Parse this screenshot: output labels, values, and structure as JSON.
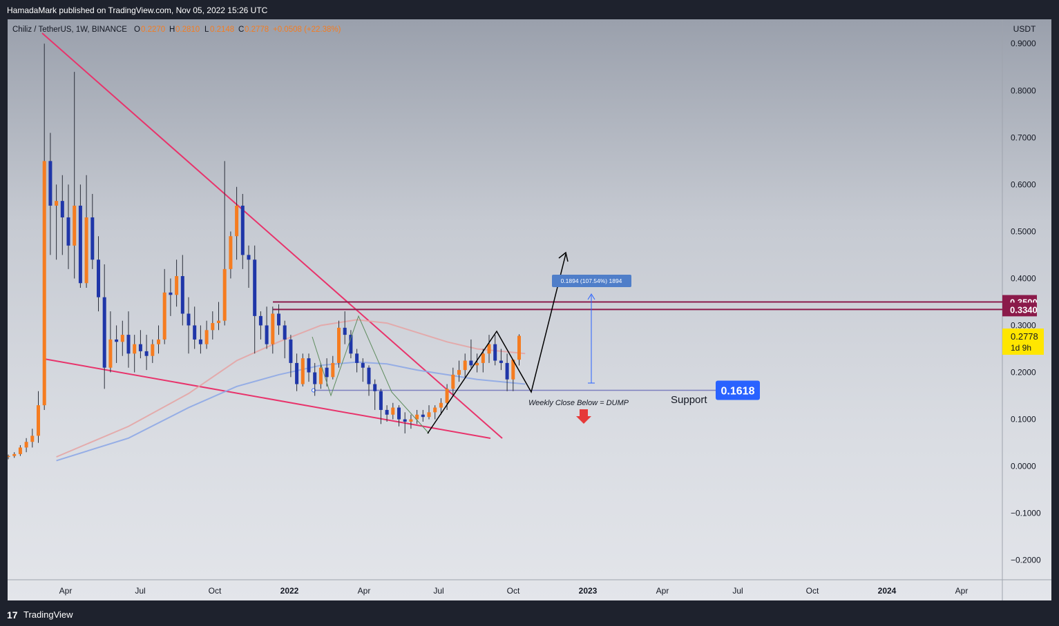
{
  "header": {
    "published": "HamadaMark published on TradingView.com, Nov 05, 2022 15:26 UTC"
  },
  "footer": {
    "logo": "17",
    "brand": "TradingView"
  },
  "legend": {
    "symbol": "Chiliz / TetherUS, 1W, BINANCE",
    "o_label": "O",
    "o_value": "0.2270",
    "h_label": "H",
    "h_value": "0.2810",
    "l_label": "L",
    "l_value": "0.2148",
    "c_label": "C",
    "c_value": "0.2778",
    "change": "+0.0508 (+22.38%)"
  },
  "colors": {
    "up": "#f57c20",
    "down": "#1f36a8",
    "trendline": "#e8336b",
    "resistance": "#8b1a4a",
    "support": "#2962ff",
    "price": "#ffe600"
  },
  "chart_data": {
    "type": "candlestick",
    "currency": "USDT",
    "ylim": [
      -0.25,
      0.92
    ],
    "y_ticks": [
      "0.9000",
      "0.8000",
      "0.7000",
      "0.6000",
      "0.5000",
      "0.4000",
      "0.3000",
      "0.2000",
      "0.1000",
      "0.0000",
      "−0.1000",
      "−0.2000"
    ],
    "x_ticks": [
      "Apr",
      "Jul",
      "Oct",
      "2022",
      "Apr",
      "Jul",
      "Oct",
      "2023",
      "Apr",
      "Jul",
      "Oct",
      "2024",
      "Apr"
    ],
    "candles": [
      {
        "o": 0.02,
        "h": 0.025,
        "l": 0.015,
        "c": 0.022
      },
      {
        "o": 0.022,
        "h": 0.03,
        "l": 0.018,
        "c": 0.026
      },
      {
        "o": 0.026,
        "h": 0.045,
        "l": 0.022,
        "c": 0.04
      },
      {
        "o": 0.04,
        "h": 0.06,
        "l": 0.03,
        "c": 0.052
      },
      {
        "o": 0.052,
        "h": 0.08,
        "l": 0.04,
        "c": 0.065
      },
      {
        "o": 0.065,
        "h": 0.16,
        "l": 0.05,
        "c": 0.13
      },
      {
        "o": 0.13,
        "h": 0.9,
        "l": 0.12,
        "c": 0.65
      },
      {
        "o": 0.65,
        "h": 0.71,
        "l": 0.45,
        "c": 0.555
      },
      {
        "o": 0.555,
        "h": 0.6,
        "l": 0.44,
        "c": 0.565
      },
      {
        "o": 0.565,
        "h": 0.62,
        "l": 0.45,
        "c": 0.53
      },
      {
        "o": 0.53,
        "h": 0.6,
        "l": 0.42,
        "c": 0.47
      },
      {
        "o": 0.47,
        "h": 0.84,
        "l": 0.4,
        "c": 0.555
      },
      {
        "o": 0.555,
        "h": 0.6,
        "l": 0.38,
        "c": 0.39
      },
      {
        "o": 0.39,
        "h": 0.62,
        "l": 0.38,
        "c": 0.53
      },
      {
        "o": 0.53,
        "h": 0.58,
        "l": 0.42,
        "c": 0.44
      },
      {
        "o": 0.44,
        "h": 0.49,
        "l": 0.33,
        "c": 0.36
      },
      {
        "o": 0.36,
        "h": 0.43,
        "l": 0.165,
        "c": 0.21
      },
      {
        "o": 0.21,
        "h": 0.33,
        "l": 0.2,
        "c": 0.27
      },
      {
        "o": 0.27,
        "h": 0.3,
        "l": 0.22,
        "c": 0.265
      },
      {
        "o": 0.265,
        "h": 0.31,
        "l": 0.235,
        "c": 0.28
      },
      {
        "o": 0.28,
        "h": 0.33,
        "l": 0.21,
        "c": 0.24
      },
      {
        "o": 0.24,
        "h": 0.28,
        "l": 0.2,
        "c": 0.26
      },
      {
        "o": 0.26,
        "h": 0.29,
        "l": 0.23,
        "c": 0.245
      },
      {
        "o": 0.245,
        "h": 0.28,
        "l": 0.205,
        "c": 0.235
      },
      {
        "o": 0.235,
        "h": 0.27,
        "l": 0.22,
        "c": 0.26
      },
      {
        "o": 0.26,
        "h": 0.3,
        "l": 0.24,
        "c": 0.27
      },
      {
        "o": 0.27,
        "h": 0.42,
        "l": 0.26,
        "c": 0.37
      },
      {
        "o": 0.37,
        "h": 0.4,
        "l": 0.32,
        "c": 0.365
      },
      {
        "o": 0.365,
        "h": 0.44,
        "l": 0.34,
        "c": 0.405
      },
      {
        "o": 0.405,
        "h": 0.45,
        "l": 0.3,
        "c": 0.325
      },
      {
        "o": 0.325,
        "h": 0.36,
        "l": 0.24,
        "c": 0.3
      },
      {
        "o": 0.3,
        "h": 0.34,
        "l": 0.25,
        "c": 0.27
      },
      {
        "o": 0.27,
        "h": 0.3,
        "l": 0.24,
        "c": 0.26
      },
      {
        "o": 0.26,
        "h": 0.31,
        "l": 0.25,
        "c": 0.29
      },
      {
        "o": 0.29,
        "h": 0.33,
        "l": 0.27,
        "c": 0.305
      },
      {
        "o": 0.305,
        "h": 0.35,
        "l": 0.29,
        "c": 0.31
      },
      {
        "o": 0.31,
        "h": 0.65,
        "l": 0.3,
        "c": 0.42
      },
      {
        "o": 0.42,
        "h": 0.5,
        "l": 0.4,
        "c": 0.49
      },
      {
        "o": 0.49,
        "h": 0.595,
        "l": 0.44,
        "c": 0.555
      },
      {
        "o": 0.555,
        "h": 0.58,
        "l": 0.42,
        "c": 0.45
      },
      {
        "o": 0.45,
        "h": 0.47,
        "l": 0.38,
        "c": 0.44
      },
      {
        "o": 0.44,
        "h": 0.47,
        "l": 0.24,
        "c": 0.32
      },
      {
        "o": 0.32,
        "h": 0.33,
        "l": 0.27,
        "c": 0.3
      },
      {
        "o": 0.3,
        "h": 0.34,
        "l": 0.25,
        "c": 0.26
      },
      {
        "o": 0.26,
        "h": 0.34,
        "l": 0.24,
        "c": 0.325
      },
      {
        "o": 0.325,
        "h": 0.345,
        "l": 0.28,
        "c": 0.3
      },
      {
        "o": 0.3,
        "h": 0.31,
        "l": 0.23,
        "c": 0.27
      },
      {
        "o": 0.27,
        "h": 0.28,
        "l": 0.19,
        "c": 0.22
      },
      {
        "o": 0.22,
        "h": 0.24,
        "l": 0.16,
        "c": 0.175
      },
      {
        "o": 0.175,
        "h": 0.24,
        "l": 0.17,
        "c": 0.23
      },
      {
        "o": 0.23,
        "h": 0.24,
        "l": 0.18,
        "c": 0.2
      },
      {
        "o": 0.2,
        "h": 0.22,
        "l": 0.15,
        "c": 0.175
      },
      {
        "o": 0.175,
        "h": 0.22,
        "l": 0.165,
        "c": 0.21
      },
      {
        "o": 0.21,
        "h": 0.23,
        "l": 0.17,
        "c": 0.19
      },
      {
        "o": 0.19,
        "h": 0.235,
        "l": 0.185,
        "c": 0.22
      },
      {
        "o": 0.22,
        "h": 0.31,
        "l": 0.21,
        "c": 0.295
      },
      {
        "o": 0.295,
        "h": 0.33,
        "l": 0.26,
        "c": 0.28
      },
      {
        "o": 0.28,
        "h": 0.29,
        "l": 0.23,
        "c": 0.24
      },
      {
        "o": 0.24,
        "h": 0.25,
        "l": 0.2,
        "c": 0.22
      },
      {
        "o": 0.22,
        "h": 0.23,
        "l": 0.18,
        "c": 0.21
      },
      {
        "o": 0.21,
        "h": 0.215,
        "l": 0.15,
        "c": 0.175
      },
      {
        "o": 0.175,
        "h": 0.185,
        "l": 0.12,
        "c": 0.16
      },
      {
        "o": 0.16,
        "h": 0.165,
        "l": 0.09,
        "c": 0.12
      },
      {
        "o": 0.12,
        "h": 0.13,
        "l": 0.095,
        "c": 0.11
      },
      {
        "o": 0.11,
        "h": 0.135,
        "l": 0.1,
        "c": 0.125
      },
      {
        "o": 0.125,
        "h": 0.13,
        "l": 0.085,
        "c": 0.1
      },
      {
        "o": 0.1,
        "h": 0.115,
        "l": 0.07,
        "c": 0.095
      },
      {
        "o": 0.095,
        "h": 0.11,
        "l": 0.08,
        "c": 0.1
      },
      {
        "o": 0.1,
        "h": 0.12,
        "l": 0.09,
        "c": 0.11
      },
      {
        "o": 0.11,
        "h": 0.12,
        "l": 0.095,
        "c": 0.105
      },
      {
        "o": 0.105,
        "h": 0.13,
        "l": 0.1,
        "c": 0.115
      },
      {
        "o": 0.115,
        "h": 0.13,
        "l": 0.1,
        "c": 0.125
      },
      {
        "o": 0.125,
        "h": 0.145,
        "l": 0.11,
        "c": 0.135
      },
      {
        "o": 0.135,
        "h": 0.175,
        "l": 0.12,
        "c": 0.165
      },
      {
        "o": 0.165,
        "h": 0.21,
        "l": 0.15,
        "c": 0.195
      },
      {
        "o": 0.195,
        "h": 0.225,
        "l": 0.18,
        "c": 0.205
      },
      {
        "o": 0.205,
        "h": 0.24,
        "l": 0.19,
        "c": 0.225
      },
      {
        "o": 0.225,
        "h": 0.27,
        "l": 0.21,
        "c": 0.215
      },
      {
        "o": 0.215,
        "h": 0.24,
        "l": 0.2,
        "c": 0.22
      },
      {
        "o": 0.22,
        "h": 0.25,
        "l": 0.2,
        "c": 0.24
      },
      {
        "o": 0.24,
        "h": 0.28,
        "l": 0.22,
        "c": 0.26
      },
      {
        "o": 0.26,
        "h": 0.28,
        "l": 0.215,
        "c": 0.225
      },
      {
        "o": 0.225,
        "h": 0.25,
        "l": 0.205,
        "c": 0.22
      },
      {
        "o": 0.22,
        "h": 0.24,
        "l": 0.16,
        "c": 0.185
      },
      {
        "o": 0.185,
        "h": 0.225,
        "l": 0.16,
        "c": 0.227
      },
      {
        "o": 0.227,
        "h": 0.281,
        "l": 0.2148,
        "c": 0.2778
      }
    ],
    "moving_averages": [
      {
        "color": "#e4a5a5",
        "points": [
          [
            8,
            0.02
          ],
          [
            20,
            0.085
          ],
          [
            30,
            0.155
          ],
          [
            38,
            0.225
          ],
          [
            45,
            0.265
          ],
          [
            52,
            0.3
          ],
          [
            58,
            0.312
          ],
          [
            63,
            0.305
          ],
          [
            68,
            0.285
          ],
          [
            73,
            0.265
          ],
          [
            78,
            0.25
          ],
          [
            86,
            0.24
          ]
        ]
      },
      {
        "color": "#8ea9e6",
        "points": [
          [
            8,
            0.012
          ],
          [
            20,
            0.06
          ],
          [
            30,
            0.125
          ],
          [
            38,
            0.17
          ],
          [
            45,
            0.195
          ],
          [
            52,
            0.215
          ],
          [
            58,
            0.222
          ],
          [
            63,
            0.218
          ],
          [
            68,
            0.205
          ],
          [
            73,
            0.195
          ],
          [
            78,
            0.185
          ],
          [
            86,
            0.175
          ]
        ]
      }
    ],
    "horizontal_levels": [
      {
        "value": 0.35,
        "label": "0.3500"
      },
      {
        "value": 0.334,
        "label": "0.3340"
      },
      {
        "value": 0.1618,
        "label": "0.1618"
      }
    ],
    "current_price": {
      "value": 0.2778,
      "label": "0.2778",
      "countdown": "1d 9h"
    },
    "measure_label": "0.1894 (107.54%) 1894",
    "annotations": {
      "support": "Support",
      "dump": "Weekly Close Below = DUMP"
    }
  }
}
